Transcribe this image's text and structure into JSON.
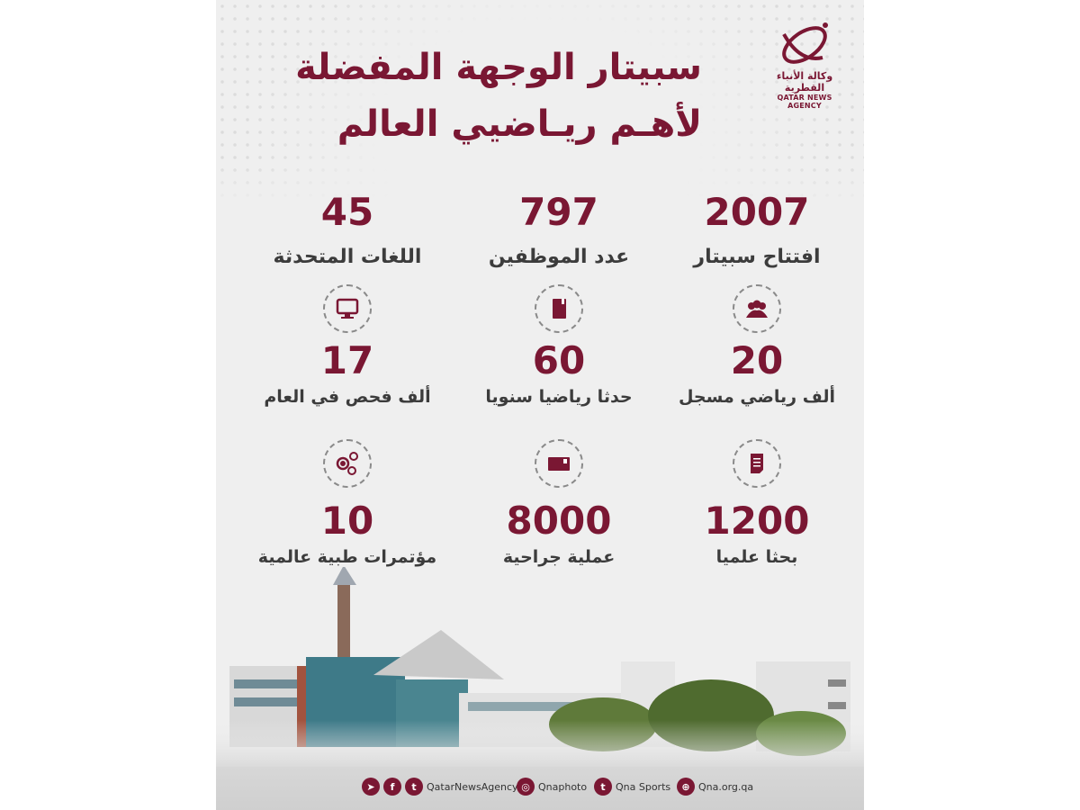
{
  "colors": {
    "accent": "#7a1733",
    "background": "#efefef",
    "label": "#3c3c3c"
  },
  "header": {
    "title_line1": "سبيتار الوجهة المفضلة",
    "title_line2": "لأهـم ريـاضيي العالم"
  },
  "logo": {
    "arabic": "وكالة الأنباء القطرية",
    "english": "QATAR NEWS AGENCY"
  },
  "stats_top": [
    {
      "value": "2007",
      "label": "افتتاح سبيتار"
    },
    {
      "value": "797",
      "label": "عدد الموظفين"
    },
    {
      "value": "45",
      "label": "اللغات المتحدثة"
    }
  ],
  "stats_mid": [
    {
      "icon": "people-group-icon",
      "value": "20",
      "label": "ألف رياضي مسجل"
    },
    {
      "icon": "notebook-icon",
      "value": "60",
      "label": "حدثا رياضيا سنويا"
    },
    {
      "icon": "monitor-icon",
      "value": "17",
      "label": "ألف فحص في العام"
    }
  ],
  "stats_bottom": [
    {
      "icon": "document-icon",
      "value": "1200",
      "label": "بحثا علميا"
    },
    {
      "icon": "card-icon",
      "value": "8000",
      "label": "عملية جراحية"
    },
    {
      "icon": "network-people-icon",
      "value": "10",
      "label": "مؤتمرات طبية عالمية"
    }
  ],
  "footer": {
    "social_handle": "QatarNewsAgency",
    "instagram": "Qnaphoto",
    "twitter_sports": "Qna Sports",
    "website": "Qna.org.qa"
  }
}
